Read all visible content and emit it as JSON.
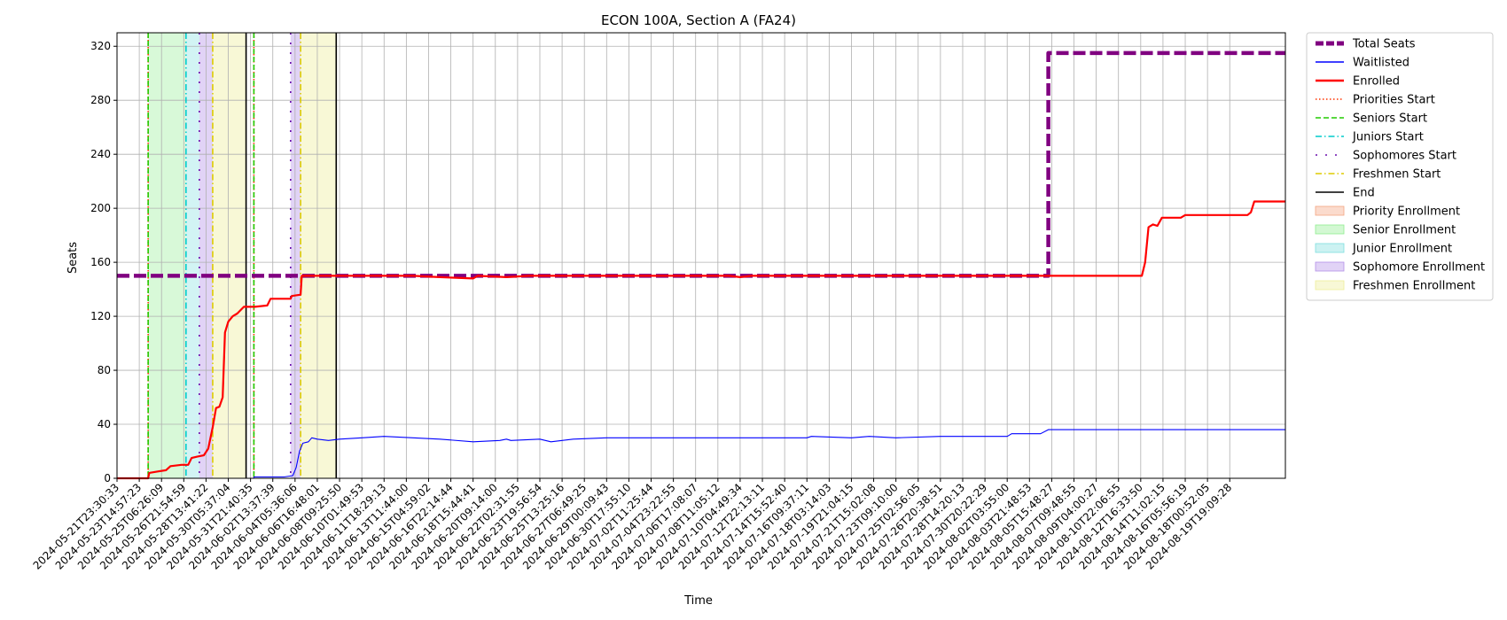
{
  "chart_data": {
    "type": "line",
    "title": "ECON 100A, Section A (FA24)",
    "xlabel": "Time",
    "ylabel": "Seats",
    "ylim": [
      0,
      330
    ],
    "xlim_index": [
      0,
      52.5
    ],
    "yticks": [
      0,
      40,
      80,
      120,
      160,
      200,
      240,
      280,
      320
    ],
    "grid": true,
    "legend_position": "outside-right",
    "x_tick_labels": [
      "2024-05-21T23:30:33",
      "2024-05-23T14:57:23",
      "2024-05-25T06:26:09",
      "2024-05-26T21:54:59",
      "2024-05-28T13:41:22",
      "2024-05-30T05:37:04",
      "2024-05-31T21:40:35",
      "2024-06-02T13:37:39",
      "2024-06-04T05:36:06",
      "2024-06-06T16:48:01",
      "2024-06-08T09:25:50",
      "2024-06-10T01:49:53",
      "2024-06-11T18:29:13",
      "2024-06-13T11:44:00",
      "2024-06-15T04:59:02",
      "2024-06-16T22:14:44",
      "2024-06-18T15:44:41",
      "2024-06-20T09:14:00",
      "2024-06-22T02:31:55",
      "2024-06-23T19:56:54",
      "2024-06-25T13:25:16",
      "2024-06-27T06:49:25",
      "2024-06-29T00:09:43",
      "2024-06-30T17:55:10",
      "2024-07-02T11:25:44",
      "2024-07-04T23:22:55",
      "2024-07-06T17:08:07",
      "2024-07-08T11:05:12",
      "2024-07-10T04:49:34",
      "2024-07-12T22:13:11",
      "2024-07-14T15:52:40",
      "2024-07-16T09:37:11",
      "2024-07-18T03:14:03",
      "2024-07-19T21:04:15",
      "2024-07-21T15:02:08",
      "2024-07-23T09:10:00",
      "2024-07-25T02:56:05",
      "2024-07-26T20:38:51",
      "2024-07-28T14:20:13",
      "2024-07-30T20:22:29",
      "2024-08-02T03:55:00",
      "2024-08-03T21:48:53",
      "2024-08-05T15:48:27",
      "2024-08-07T09:48:55",
      "2024-08-09T04:00:27",
      "2024-08-10T22:06:55",
      "2024-08-12T16:33:50",
      "2024-08-14T11:02:15",
      "2024-08-16T05:56:19",
      "2024-08-18T00:52:05",
      "2024-08-19T19:09:28"
    ],
    "series": [
      {
        "name": "Total Seats",
        "color": "#800080",
        "style": "dashed",
        "points": [
          [
            0,
            150
          ],
          [
            41.85,
            150
          ],
          [
            41.85,
            315
          ],
          [
            52.5,
            315
          ]
        ]
      },
      {
        "name": "Waitlisted",
        "color": "#0000ff",
        "style": "solid",
        "points": [
          [
            0,
            0
          ],
          [
            6.15,
            0
          ],
          [
            6.15,
            1
          ],
          [
            7.5,
            1
          ],
          [
            7.9,
            2
          ],
          [
            8.05,
            8
          ],
          [
            8.2,
            20
          ],
          [
            8.35,
            26
          ],
          [
            8.6,
            27
          ],
          [
            8.75,
            30
          ],
          [
            9.0,
            29
          ],
          [
            9.5,
            28
          ],
          [
            10.0,
            29
          ],
          [
            11.0,
            30
          ],
          [
            12.0,
            31
          ],
          [
            13.3,
            30
          ],
          [
            14.5,
            29
          ],
          [
            16.0,
            27
          ],
          [
            17.2,
            28
          ],
          [
            17.5,
            29
          ],
          [
            17.7,
            28
          ],
          [
            19.0,
            29
          ],
          [
            19.5,
            27
          ],
          [
            20.0,
            28
          ],
          [
            20.5,
            29
          ],
          [
            22.0,
            30
          ],
          [
            31.0,
            30
          ],
          [
            31.2,
            31
          ],
          [
            33.0,
            30
          ],
          [
            33.8,
            31
          ],
          [
            35.0,
            30
          ],
          [
            37.0,
            31
          ],
          [
            40.0,
            31
          ],
          [
            40.2,
            33
          ],
          [
            41.5,
            33
          ],
          [
            41.85,
            36
          ],
          [
            52.5,
            36
          ]
        ]
      },
      {
        "name": "Enrolled",
        "color": "#ff0000",
        "style": "solid",
        "points": [
          [
            0,
            0
          ],
          [
            1.4,
            0
          ],
          [
            1.45,
            4
          ],
          [
            1.8,
            5
          ],
          [
            2.2,
            6
          ],
          [
            2.4,
            9
          ],
          [
            2.9,
            10
          ],
          [
            3.2,
            10
          ],
          [
            3.35,
            15
          ],
          [
            3.6,
            16
          ],
          [
            3.9,
            17
          ],
          [
            4.1,
            22
          ],
          [
            4.3,
            38
          ],
          [
            4.45,
            52
          ],
          [
            4.6,
            53
          ],
          [
            4.75,
            60
          ],
          [
            4.85,
            108
          ],
          [
            5.0,
            116
          ],
          [
            5.2,
            120
          ],
          [
            5.4,
            122
          ],
          [
            5.7,
            127
          ],
          [
            6.2,
            127
          ],
          [
            6.75,
            128
          ],
          [
            6.9,
            133
          ],
          [
            7.8,
            133
          ],
          [
            7.85,
            135
          ],
          [
            8.25,
            136
          ],
          [
            8.3,
            150
          ],
          [
            13.3,
            150
          ],
          [
            14.5,
            149
          ],
          [
            16.0,
            148
          ],
          [
            16.2,
            150
          ],
          [
            17.5,
            149
          ],
          [
            18.5,
            150
          ],
          [
            27.5,
            150
          ],
          [
            28.0,
            149
          ],
          [
            28.5,
            150
          ],
          [
            46.05,
            150
          ],
          [
            46.2,
            160
          ],
          [
            46.35,
            186
          ],
          [
            46.55,
            188
          ],
          [
            46.75,
            187
          ],
          [
            46.95,
            193
          ],
          [
            47.8,
            193
          ],
          [
            48.0,
            195
          ],
          [
            50.8,
            195
          ],
          [
            50.95,
            197
          ],
          [
            51.1,
            205
          ],
          [
            52.5,
            205
          ]
        ]
      }
    ],
    "vlines": [
      {
        "name": "Priorities Start",
        "color": "#ff3300",
        "style": "dotted",
        "x": [
          1.4,
          6.15
        ]
      },
      {
        "name": "Seniors Start",
        "color": "#22cc00",
        "style": "dashed",
        "x": [
          1.4,
          6.15
        ]
      },
      {
        "name": "Juniors Start",
        "color": "#00cccc",
        "style": "dashdot",
        "x": [
          3.1
        ]
      },
      {
        "name": "Sophomores Start",
        "color": "#6a0dad",
        "style": "sparse-dot",
        "x": [
          3.7,
          7.8
        ]
      },
      {
        "name": "Freshmen Start",
        "color": "#ddcc00",
        "style": "dashdot",
        "x": [
          4.3,
          8.25
        ]
      },
      {
        "name": "End",
        "color": "#000000",
        "style": "solid",
        "x": [
          5.8,
          9.85
        ]
      }
    ],
    "spans": [
      {
        "name": "Priority Enrollment",
        "color": "#f4a582",
        "alpha": 0.35,
        "ranges": []
      },
      {
        "name": "Senior Enrollment",
        "color": "#90ee90",
        "alpha": 0.35,
        "ranges": [
          [
            1.4,
            3.1
          ]
        ]
      },
      {
        "name": "Junior Enrollment",
        "color": "#7fdfdf",
        "alpha": 0.35,
        "ranges": [
          [
            3.1,
            3.7
          ]
        ]
      },
      {
        "name": "Sophomore Enrollment",
        "color": "#b591e8",
        "alpha": 0.4,
        "ranges": [
          [
            3.7,
            4.3
          ],
          [
            7.8,
            8.25
          ]
        ]
      },
      {
        "name": "Freshmen Enrollment",
        "color": "#eeee99",
        "alpha": 0.4,
        "ranges": [
          [
            4.3,
            5.8
          ],
          [
            8.25,
            9.85
          ]
        ]
      }
    ],
    "legend": [
      {
        "label": "Total Seats",
        "kind": "line",
        "color": "#800080",
        "style": "dashed-thick"
      },
      {
        "label": "Waitlisted",
        "kind": "line",
        "color": "#0000ff",
        "style": "solid"
      },
      {
        "label": "Enrolled",
        "kind": "line",
        "color": "#ff0000",
        "style": "solid-thick"
      },
      {
        "label": "Priorities Start",
        "kind": "line",
        "color": "#ff3300",
        "style": "dotted"
      },
      {
        "label": "Seniors Start",
        "kind": "line",
        "color": "#22cc00",
        "style": "dashed"
      },
      {
        "label": "Juniors Start",
        "kind": "line",
        "color": "#00cccc",
        "style": "dashdot"
      },
      {
        "label": "Sophomores Start",
        "kind": "line",
        "color": "#6a0dad",
        "style": "sparse-dot"
      },
      {
        "label": "Freshmen Start",
        "kind": "line",
        "color": "#ddcc00",
        "style": "dashdot"
      },
      {
        "label": "End",
        "kind": "line",
        "color": "#000000",
        "style": "solid"
      },
      {
        "label": "Priority Enrollment",
        "kind": "patch",
        "color": "#f4a582"
      },
      {
        "label": "Senior Enrollment",
        "kind": "patch",
        "color": "#90ee90"
      },
      {
        "label": "Junior Enrollment",
        "kind": "patch",
        "color": "#7fdfdf"
      },
      {
        "label": "Sophomore Enrollment",
        "kind": "patch",
        "color": "#b591e8"
      },
      {
        "label": "Freshmen Enrollment",
        "kind": "patch",
        "color": "#eeee99"
      }
    ]
  }
}
